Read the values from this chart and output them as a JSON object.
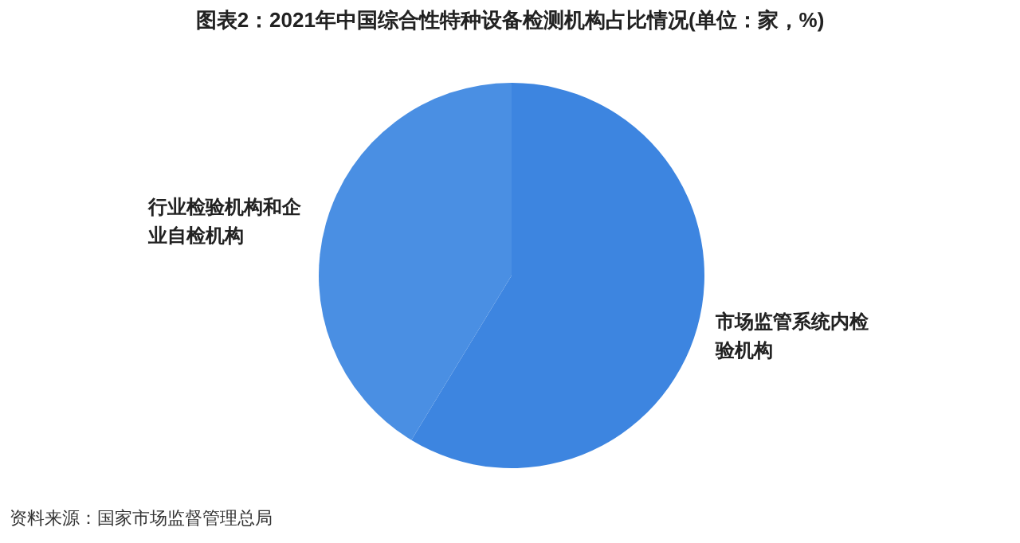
{
  "chart_data": {
    "type": "pie",
    "title": "图表2：2021年中国综合性特种设备检测机构占比情况(单位：家，%)",
    "categories": [
      "市场监管系统内检验机构",
      "行业检验机构和企业自检机构"
    ],
    "values": [
      58.7,
      41.3
    ],
    "colors": [
      "#3d85e0",
      "#4a8fe3"
    ],
    "annotations": [
      "资料来源：国家市场监督管理总局"
    ]
  }
}
